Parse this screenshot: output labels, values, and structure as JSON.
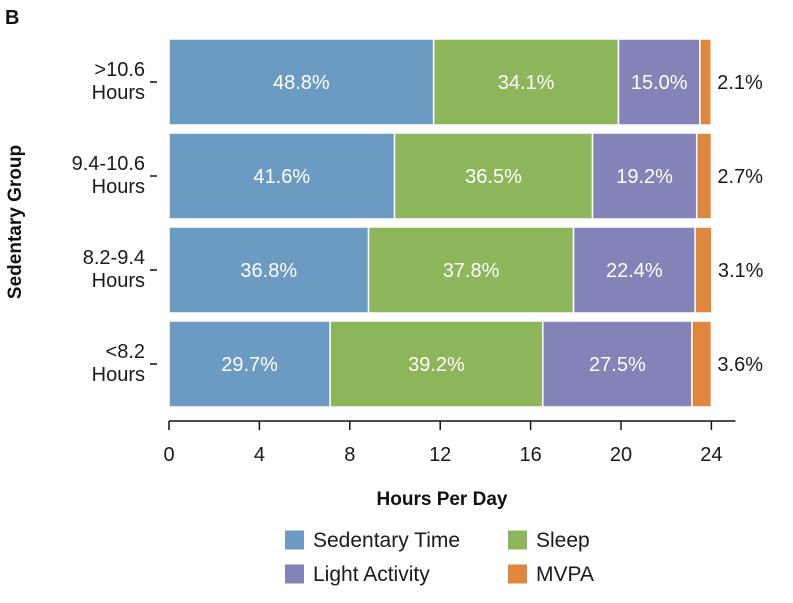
{
  "panel_label": "B",
  "chart_data": {
    "type": "bar",
    "orientation": "horizontal",
    "stacked": true,
    "categories": [
      ">10.6\nHours",
      "9.4-10.6\nHours",
      "8.2-9.4\nHours",
      "<8.2\nHours"
    ],
    "series": [
      {
        "name": "Sedentary Time",
        "color": "#6b9bc3",
        "hours": [
          11.71,
          9.98,
          8.83,
          7.13
        ],
        "labels": [
          "48.8%",
          "41.6%",
          "36.8%",
          "29.7%"
        ]
      },
      {
        "name": "Sleep",
        "color": "#8db65b",
        "hours": [
          8.18,
          8.76,
          9.07,
          9.41
        ],
        "labels": [
          "34.1%",
          "36.5%",
          "37.8%",
          "39.2%"
        ]
      },
      {
        "name": "Light Activity",
        "color": "#8383b8",
        "hours": [
          3.6,
          4.61,
          5.38,
          6.6
        ],
        "labels": [
          "15.0%",
          "19.2%",
          "22.4%",
          "27.5%"
        ]
      },
      {
        "name": "MVPA",
        "color": "#e0873e",
        "hours": [
          0.5,
          0.65,
          0.74,
          0.86
        ],
        "labels": [
          "2.1%",
          "2.7%",
          "3.1%",
          "3.6%"
        ]
      }
    ],
    "xlabel": "Hours Per Day",
    "ylabel": "Sedentary Group",
    "xlim": [
      0,
      24
    ],
    "xticks": [
      0,
      4,
      8,
      12,
      16,
      20,
      24
    ],
    "grid": false,
    "legend_position": "bottom"
  }
}
